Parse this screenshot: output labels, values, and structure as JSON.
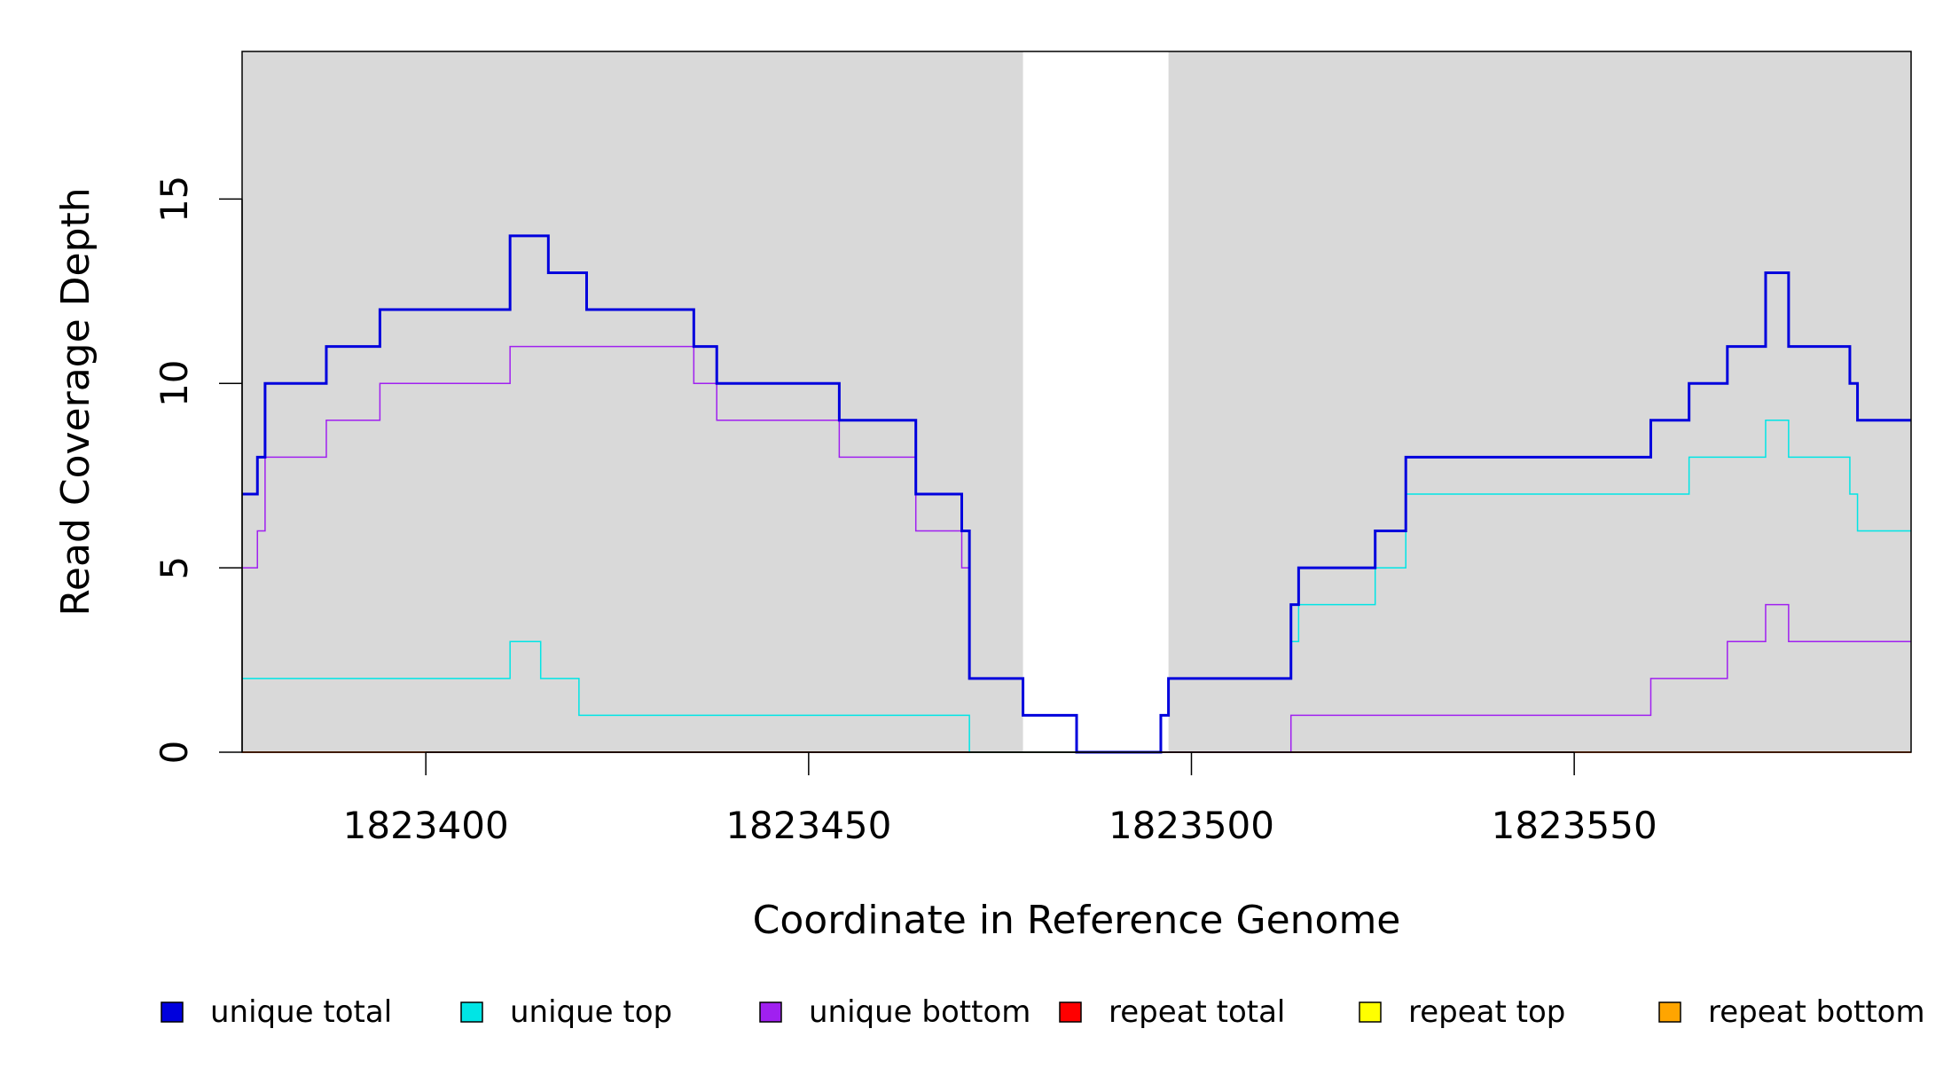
{
  "chart_data": {
    "type": "line",
    "step": true,
    "title": "",
    "xlabel": "Coordinate in Reference Genome",
    "ylabel": "Read Coverage Depth",
    "xlim": [
      1823376,
      1823594
    ],
    "ylim": [
      0,
      19
    ],
    "x_ticks": [
      1823400,
      1823450,
      1823500,
      1823550
    ],
    "y_ticks": [
      0,
      5,
      10,
      15
    ],
    "shaded_regions": [
      {
        "x0": 1823376,
        "x1": 1823478,
        "color": "#d9d9d9"
      },
      {
        "x0": 1823497,
        "x1": 1823594,
        "color": "#d9d9d9"
      }
    ],
    "legend_placement": "bottom",
    "series": [
      {
        "name": "unique total",
        "color": "#0000dd",
        "width": 3,
        "x": [
          1823376,
          1823378,
          1823379,
          1823387,
          1823394,
          1823411,
          1823416,
          1823421,
          1823435,
          1823438,
          1823454,
          1823464,
          1823470,
          1823471,
          1823478,
          1823485,
          1823496,
          1823497,
          1823513,
          1823514,
          1823524,
          1823528,
          1823560,
          1823565,
          1823570,
          1823575,
          1823578,
          1823586,
          1823587,
          1823594
        ],
        "y": [
          7,
          8,
          10,
          11,
          12,
          14,
          13,
          12,
          11,
          10,
          9,
          7,
          6,
          2,
          1,
          0,
          1,
          2,
          4,
          5,
          6,
          8,
          9,
          10,
          11,
          13,
          11,
          10,
          9,
          9
        ]
      },
      {
        "name": "unique top",
        "color": "#00e5e5",
        "width": 1.5,
        "x": [
          1823376,
          1823411,
          1823415,
          1823420,
          1823471,
          1823496,
          1823497,
          1823513,
          1823514,
          1823524,
          1823528,
          1823565,
          1823575,
          1823578,
          1823586,
          1823587,
          1823594
        ],
        "y": [
          2,
          3,
          2,
          1,
          0,
          1,
          2,
          3,
          4,
          5,
          7,
          8,
          9,
          8,
          7,
          6,
          6
        ]
      },
      {
        "name": "unique bottom",
        "color": "#a020f0",
        "width": 1.5,
        "x": [
          1823376,
          1823378,
          1823379,
          1823387,
          1823394,
          1823411,
          1823435,
          1823438,
          1823454,
          1823464,
          1823470,
          1823471,
          1823478,
          1823485,
          1823513,
          1823560,
          1823570,
          1823575,
          1823578,
          1823594
        ],
        "y": [
          5,
          6,
          8,
          9,
          10,
          11,
          10,
          9,
          8,
          6,
          5,
          2,
          1,
          0,
          1,
          2,
          3,
          4,
          3,
          3
        ]
      },
      {
        "name": "repeat total",
        "color": "#ff0000",
        "width": 1.5,
        "x": [
          1823376,
          1823594
        ],
        "y": [
          0,
          0
        ]
      },
      {
        "name": "repeat top",
        "color": "#ffff00",
        "width": 1.5,
        "x": [
          1823376,
          1823594
        ],
        "y": [
          0,
          0
        ]
      },
      {
        "name": "repeat bottom",
        "color": "#ffa500",
        "width": 2,
        "x": [
          1823376,
          1823594
        ],
        "y": [
          0,
          0
        ]
      }
    ]
  }
}
